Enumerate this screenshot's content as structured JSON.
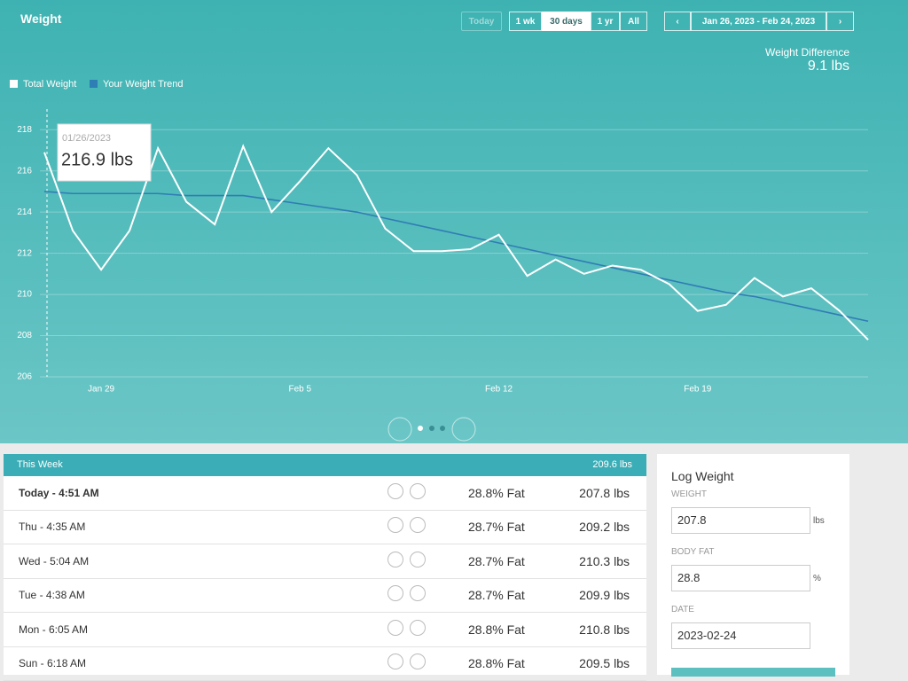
{
  "header": {
    "title": "Weight",
    "ranges": [
      "Today",
      "1 wk",
      "30 days",
      "1 yr",
      "All"
    ],
    "date_range": "Jan 26, 2023 - Feb 24, 2023",
    "difference_label": "Weight Difference",
    "difference": "9.1 lbs"
  },
  "chart_data": {
    "type": "line",
    "categories": [
      null,
      null,
      "Jan 29",
      null,
      null,
      null,
      null,
      null,
      null,
      "Feb 5",
      null,
      null,
      null,
      null,
      null,
      null,
      "Feb 12",
      null,
      null,
      null,
      null,
      null,
      null,
      "Feb 19",
      null,
      null,
      null,
      null,
      null,
      null
    ],
    "series": [
      {
        "name": "Total Weight",
        "color": "#ffffff",
        "values": [
          216.9,
          213.1,
          211.2,
          213.1,
          217.1,
          214.5,
          213.4,
          217.2,
          214.0,
          215.5,
          217.1,
          215.8,
          213.2,
          212.1,
          212.1,
          212.2,
          212.9,
          210.9,
          211.7,
          211.0,
          211.4,
          211.2,
          210.5,
          209.2,
          209.5,
          210.8,
          209.9,
          210.3,
          209.2,
          207.8
        ]
      },
      {
        "name": "Your Weight Trend",
        "color": "#2f7db5",
        "values": [
          215.0,
          214.9,
          214.9,
          214.9,
          214.9,
          214.8,
          214.8,
          214.8,
          214.6,
          214.4,
          214.2,
          214.0,
          213.7,
          213.4,
          213.1,
          212.8,
          212.5,
          212.2,
          211.9,
          211.6,
          211.3,
          211.0,
          210.7,
          210.4,
          210.1,
          209.9,
          209.6,
          209.3,
          209.0,
          208.7
        ]
      }
    ],
    "ylim": [
      206,
      219
    ],
    "yticks": [
      206,
      208,
      210,
      212,
      214,
      216,
      218
    ],
    "grid": true,
    "tooltip": {
      "date": "01/26/2023",
      "label": "216.9 lbs"
    }
  },
  "week": {
    "title": "This Week",
    "total": "209.6 lbs",
    "rows": [
      [
        "Today - 4:51 AM",
        "28.8% Fat",
        "207.8 lbs"
      ],
      [
        "Thu - 4:35 AM",
        "28.7% Fat",
        "209.2 lbs"
      ],
      [
        "Wed - 5:04 AM",
        "28.7% Fat",
        "210.3 lbs"
      ],
      [
        "Tue - 4:38 AM",
        "28.7% Fat",
        "209.9 lbs"
      ],
      [
        "Mon - 6:05 AM",
        "28.8% Fat",
        "210.8 lbs"
      ],
      [
        "Sun - 6:18 AM",
        "28.8% Fat",
        "209.5 lbs"
      ]
    ]
  },
  "log": {
    "title": "Log Weight",
    "fields": [
      {
        "label": "WEIGHT",
        "value": "207.8",
        "unit": "lbs"
      },
      {
        "label": "BODY FAT",
        "value": "28.8",
        "unit": "%"
      },
      {
        "label": "DATE",
        "value": "2023-02-24"
      }
    ]
  }
}
